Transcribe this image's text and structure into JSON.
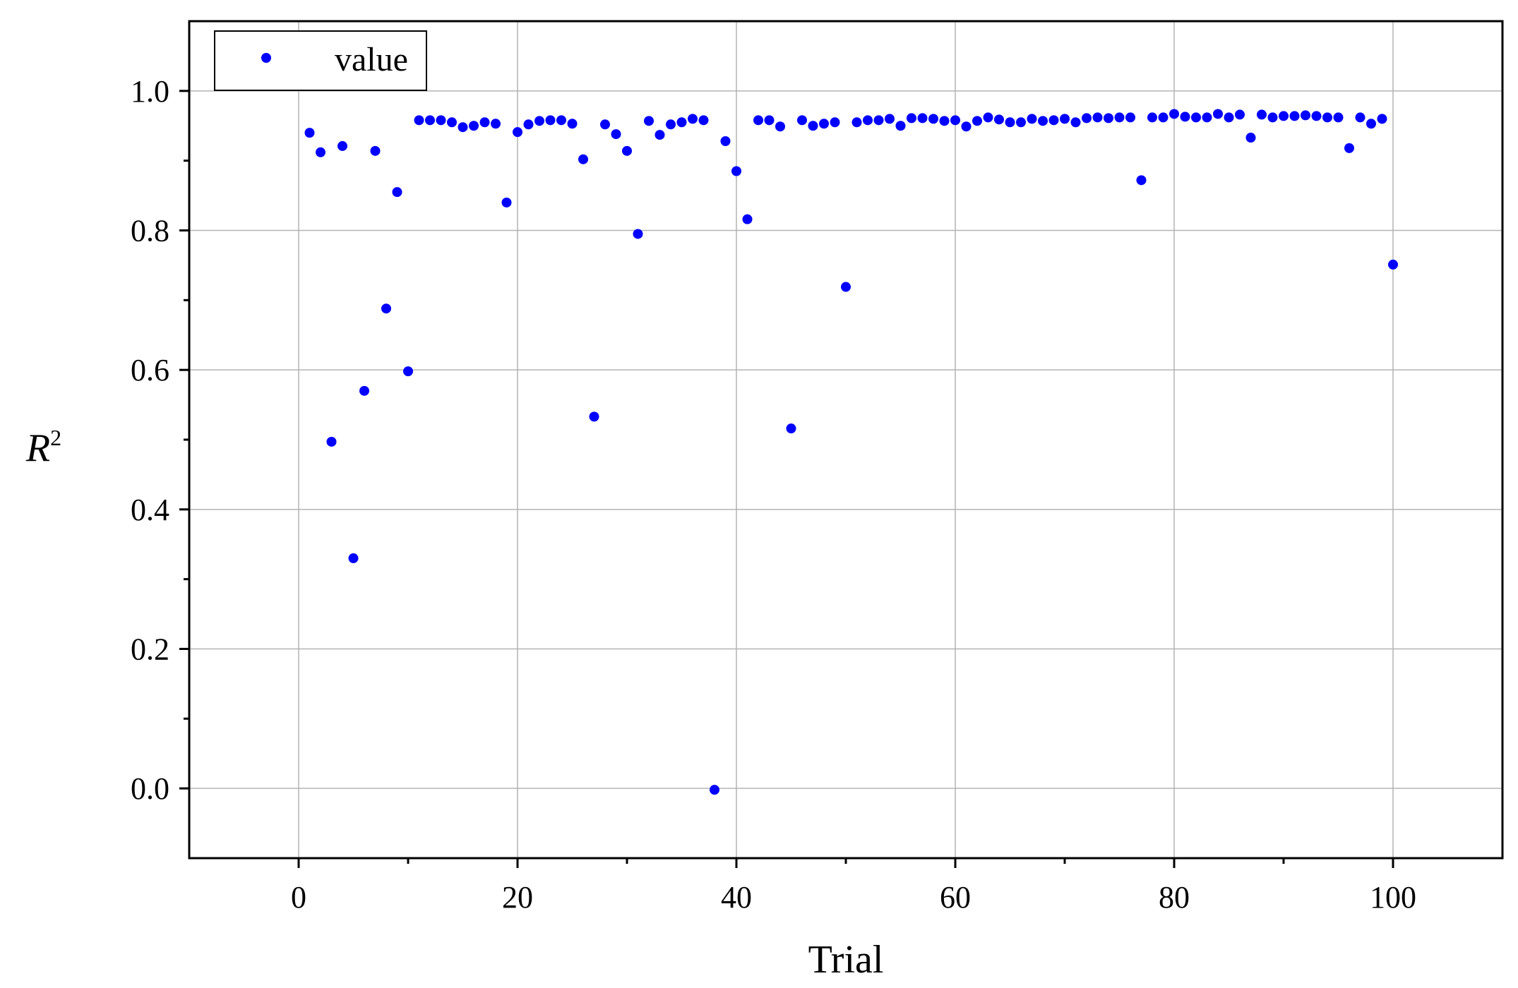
{
  "chart_data": {
    "type": "scatter",
    "title": "",
    "xlabel": "Trial",
    "ylabel": "R",
    "ylabel_superscript": "2",
    "xlim": [
      -10,
      110
    ],
    "ylim": [
      -0.1,
      1.1
    ],
    "xticks": [
      0,
      20,
      40,
      60,
      80,
      100
    ],
    "xtick_labels": [
      "0",
      "20",
      "40",
      "60",
      "80",
      "100"
    ],
    "yticks": [
      0.0,
      0.2,
      0.4,
      0.6,
      0.8,
      1.0
    ],
    "ytick_labels": [
      "0.0",
      "0.2",
      "0.4",
      "0.6",
      "0.8",
      "1.0"
    ],
    "grid": true,
    "legend_position": "top-left",
    "marker_color": "#0000ff",
    "series": [
      {
        "name": "value",
        "x": [
          1,
          2,
          3,
          4,
          5,
          6,
          7,
          8,
          9,
          10,
          11,
          12,
          13,
          14,
          15,
          16,
          17,
          18,
          19,
          20,
          21,
          22,
          23,
          24,
          25,
          26,
          27,
          28,
          29,
          30,
          31,
          32,
          33,
          34,
          35,
          36,
          37,
          38,
          39,
          40,
          41,
          42,
          43,
          44,
          45,
          46,
          47,
          48,
          49,
          50,
          51,
          52,
          53,
          54,
          55,
          56,
          57,
          58,
          59,
          60,
          61,
          62,
          63,
          64,
          65,
          66,
          67,
          68,
          69,
          70,
          71,
          72,
          73,
          74,
          75,
          76,
          77,
          78,
          79,
          80,
          81,
          82,
          83,
          84,
          85,
          86,
          87,
          88,
          89,
          90,
          91,
          92,
          93,
          94,
          95,
          96,
          97,
          98,
          99,
          100
        ],
        "y": [
          0.94,
          0.912,
          0.497,
          0.921,
          0.33,
          0.57,
          0.914,
          0.688,
          0.855,
          0.598,
          0.958,
          0.958,
          0.958,
          0.955,
          0.948,
          0.95,
          0.955,
          0.953,
          0.84,
          0.941,
          0.952,
          0.957,
          0.958,
          0.958,
          0.953,
          0.902,
          0.533,
          0.952,
          0.938,
          0.914,
          0.795,
          0.957,
          0.937,
          0.952,
          0.955,
          0.96,
          0.958,
          -0.002,
          0.928,
          0.885,
          0.816,
          0.958,
          0.958,
          0.949,
          0.516,
          0.958,
          0.95,
          0.953,
          0.955,
          0.719,
          0.955,
          0.958,
          0.958,
          0.96,
          0.95,
          0.961,
          0.961,
          0.96,
          0.957,
          0.958,
          0.949,
          0.957,
          0.962,
          0.959,
          0.955,
          0.955,
          0.96,
          0.957,
          0.958,
          0.96,
          0.955,
          0.961,
          0.962,
          0.961,
          0.962,
          0.962,
          0.872,
          0.962,
          0.962,
          0.967,
          0.963,
          0.962,
          0.962,
          0.967,
          0.962,
          0.966,
          0.933,
          0.966,
          0.962,
          0.964,
          0.964,
          0.965,
          0.964,
          0.962,
          0.962,
          0.918,
          0.962,
          0.953,
          0.96,
          0.751
        ]
      }
    ]
  }
}
